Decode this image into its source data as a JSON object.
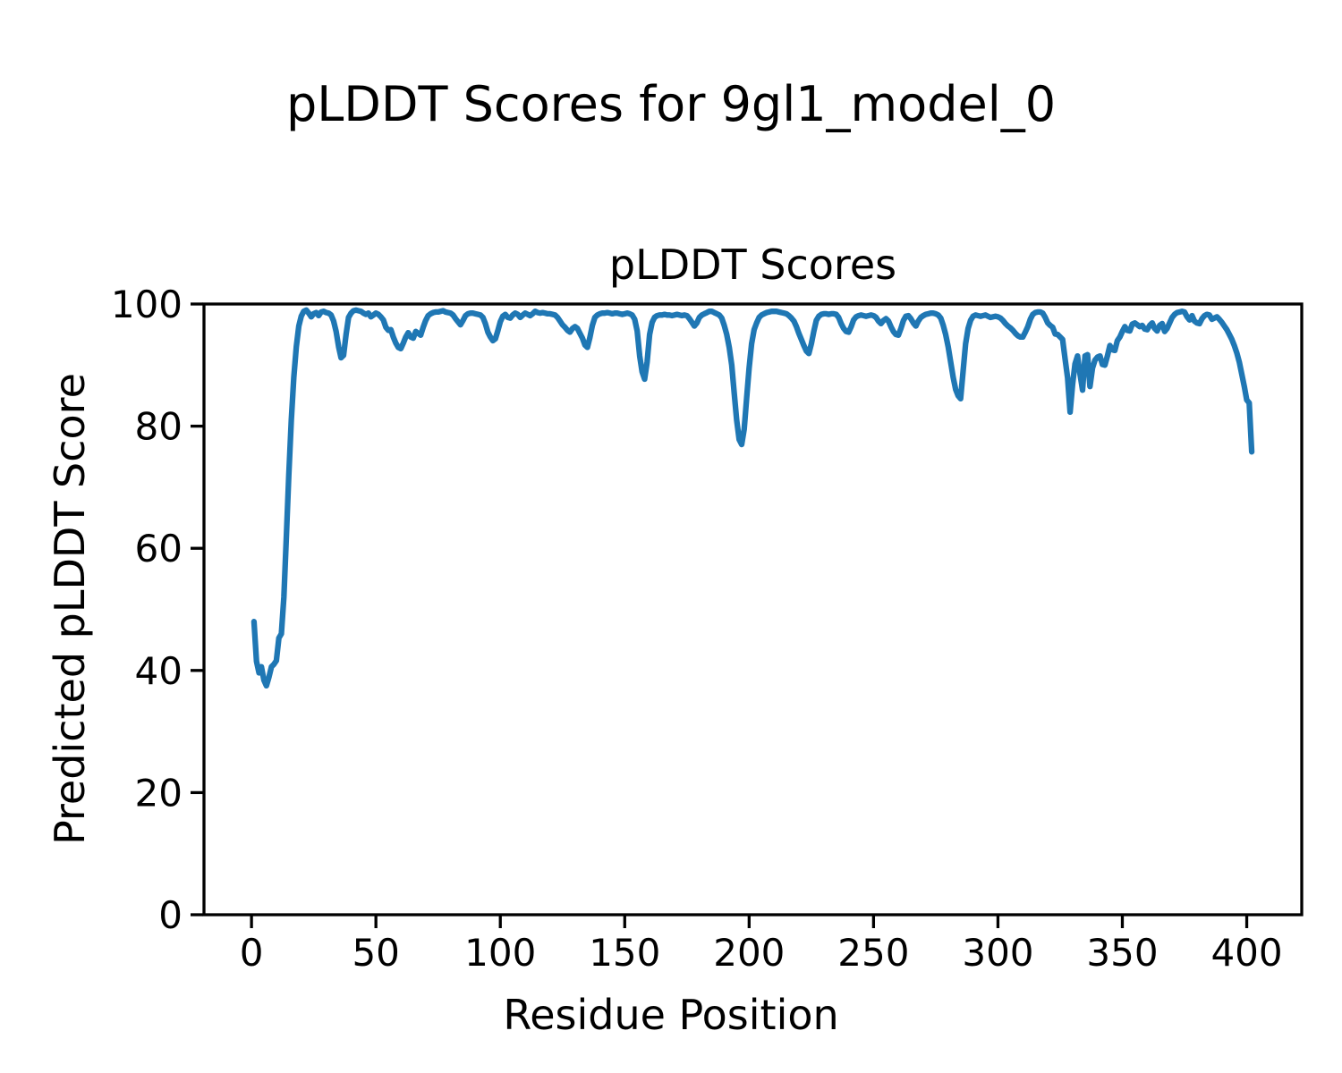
{
  "figure": {
    "suptitle": "pLDDT Scores for 9gl1_model_0",
    "background_color": "#ffffff"
  },
  "chart_data": {
    "type": "line",
    "title": "pLDDT Scores",
    "xlabel": "Residue Position",
    "ylabel": "Predicted pLDDT Score",
    "xlim": [
      -19.1,
      422.1
    ],
    "ylim": [
      0,
      100
    ],
    "xticks": [
      0,
      50,
      100,
      150,
      200,
      250,
      300,
      350,
      400
    ],
    "yticks": [
      0,
      20,
      40,
      60,
      80,
      100
    ],
    "grid": false,
    "legend_position": "none",
    "x_start": 1,
    "x_step": 1,
    "series": [
      {
        "name": "pLDDT",
        "color": "#1f77b4",
        "values": [
          48.0,
          41.5,
          39.6,
          40.6,
          38.4,
          37.5,
          38.9,
          40.6,
          41.0,
          41.6,
          45.3,
          46.0,
          52.0,
          62.0,
          72.0,
          81.0,
          88.0,
          93.0,
          96.4,
          98.0,
          98.8,
          99.0,
          98.5,
          97.9,
          98.4,
          98.6,
          98.1,
          98.7,
          98.8,
          98.6,
          98.5,
          98.2,
          97.2,
          95.5,
          93.0,
          91.2,
          91.6,
          95.0,
          97.8,
          98.5,
          98.9,
          99.0,
          98.9,
          98.8,
          98.5,
          98.3,
          98.5,
          97.9,
          98.2,
          98.5,
          98.3,
          97.9,
          97.4,
          96.2,
          95.7,
          95.8,
          94.6,
          93.6,
          92.9,
          92.7,
          93.6,
          94.6,
          95.3,
          94.6,
          94.4,
          95.5,
          95.2,
          94.9,
          96.2,
          97.3,
          98.1,
          98.4,
          98.6,
          98.7,
          98.7,
          98.8,
          98.9,
          98.7,
          98.6,
          98.5,
          98.2,
          97.6,
          97.1,
          96.6,
          97.3,
          98.1,
          98.4,
          98.5,
          98.5,
          98.4,
          98.3,
          98.2,
          97.8,
          96.8,
          95.4,
          94.6,
          94.0,
          94.3,
          95.6,
          97.1,
          98.0,
          98.3,
          97.8,
          97.7,
          98.2,
          98.5,
          98.3,
          97.8,
          98.2,
          98.5,
          98.3,
          98.1,
          98.4,
          98.8,
          98.6,
          98.5,
          98.6,
          98.5,
          98.4,
          98.4,
          98.3,
          98.2,
          97.8,
          97.2,
          96.6,
          96.2,
          95.7,
          95.4,
          96.0,
          96.3,
          96.0,
          95.2,
          94.4,
          93.3,
          92.9,
          94.5,
          96.5,
          97.8,
          98.2,
          98.4,
          98.5,
          98.5,
          98.6,
          98.5,
          98.4,
          98.5,
          98.5,
          98.4,
          98.3,
          98.4,
          98.5,
          98.4,
          98.2,
          97.5,
          95.6,
          91.5,
          88.9,
          87.7,
          90.5,
          95.0,
          97.0,
          97.8,
          98.1,
          98.2,
          98.2,
          98.3,
          98.2,
          98.2,
          98.1,
          98.2,
          98.3,
          98.2,
          98.1,
          98.2,
          98.1,
          97.6,
          97.0,
          96.4,
          96.9,
          97.8,
          98.2,
          98.4,
          98.6,
          98.8,
          98.8,
          98.6,
          98.4,
          98.2,
          97.7,
          96.5,
          95.0,
          92.9,
          90.0,
          85.5,
          81.0,
          77.8,
          77.0,
          79.5,
          84.5,
          89.5,
          93.5,
          95.8,
          96.9,
          97.8,
          98.2,
          98.4,
          98.6,
          98.7,
          98.8,
          98.8,
          98.8,
          98.7,
          98.6,
          98.5,
          98.4,
          98.1,
          97.7,
          97.2,
          96.3,
          95.2,
          94.2,
          93.2,
          92.3,
          91.9,
          93.5,
          95.5,
          97.3,
          98.0,
          98.3,
          98.4,
          98.4,
          98.3,
          98.4,
          98.4,
          98.3,
          97.8,
          96.8,
          96.0,
          95.5,
          95.4,
          96.3,
          97.4,
          97.9,
          98.1,
          98.2,
          98.1,
          98.0,
          98.1,
          98.2,
          98.1,
          97.8,
          97.2,
          96.8,
          97.3,
          97.6,
          97.2,
          96.3,
          95.5,
          95.0,
          94.9,
          96.0,
          97.3,
          98.0,
          98.1,
          97.6,
          96.9,
          96.4,
          97.2,
          97.8,
          98.1,
          98.3,
          98.4,
          98.5,
          98.5,
          98.4,
          98.2,
          97.7,
          96.5,
          95.0,
          93.0,
          90.5,
          88.0,
          86.0,
          85.0,
          84.5,
          89.0,
          93.5,
          96.0,
          97.3,
          98.0,
          98.2,
          98.1,
          98.0,
          98.1,
          98.2,
          98.0,
          97.8,
          97.9,
          98.0,
          97.9,
          97.7,
          97.3,
          96.8,
          96.4,
          96.1,
          95.7,
          95.2,
          94.8,
          94.6,
          94.6,
          95.4,
          96.3,
          97.5,
          98.3,
          98.6,
          98.7,
          98.7,
          98.5,
          97.8,
          96.9,
          96.5,
          96.2,
          95.1,
          95.0,
          94.6,
          94.2,
          91.0,
          87.9,
          82.3,
          86.9,
          90.2,
          91.5,
          88.5,
          85.9,
          91.5,
          91.7,
          86.5,
          89.5,
          90.8,
          91.3,
          91.5,
          90.1,
          90.0,
          91.5,
          93.2,
          92.5,
          92.4,
          94.0,
          94.6,
          95.5,
          96.3,
          95.7,
          95.6,
          96.7,
          96.9,
          96.6,
          96.3,
          96.5,
          95.9,
          95.8,
          96.5,
          96.9,
          96.0,
          95.6,
          96.5,
          96.8,
          95.5,
          96.0,
          96.9,
          97.8,
          98.3,
          98.6,
          98.7,
          98.8,
          98.7,
          97.9,
          97.4,
          98.1,
          97.2,
          96.9,
          96.8,
          97.6,
          98.1,
          98.3,
          98.2,
          97.5,
          97.7,
          97.9,
          97.5,
          97.0,
          96.4,
          95.8,
          95.0,
          94.2,
          93.2,
          92.0,
          90.5,
          88.5,
          86.5,
          84.3,
          83.8,
          75.8
        ]
      }
    ]
  },
  "style": {
    "line_color": "#1f77b4",
    "axis_color": "#000000",
    "text_color": "#000000",
    "plot_background": "#ffffff"
  }
}
